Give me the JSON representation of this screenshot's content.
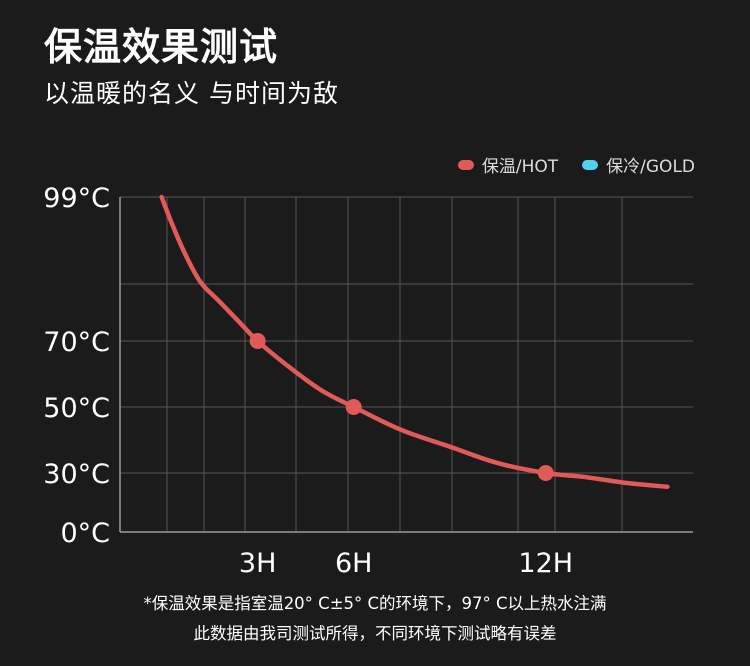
{
  "header": {
    "title": "保温效果测试",
    "subtitle": "以温暖的名义 与时间为敌"
  },
  "legend": [
    {
      "label": "保温/HOT",
      "color": "#e05a58"
    },
    {
      "label": "保冷/GOLD",
      "color": "#4fd2f0"
    }
  ],
  "colors": {
    "background": "#1b1b1b",
    "grid": "#555555",
    "axis": "#9a9a9a",
    "hot": "#e05a58"
  },
  "footnote": {
    "line1": "*保温效果是指室温20° C±5° C的环境下，97° C以上热水注满",
    "line2": "此数据由我司测试所得，不同环境下测试略有误差"
  },
  "chart_data": {
    "type": "line",
    "title": "保温效果测试",
    "xlabel": "",
    "ylabel": "",
    "grid": true,
    "legend_position": "top-right",
    "y_ticks": [
      {
        "value": 99,
        "label": "99°C"
      },
      {
        "value": 70,
        "label": "70°C"
      },
      {
        "value": 50,
        "label": "50°C"
      },
      {
        "value": 30,
        "label": "30°C"
      },
      {
        "value": 0,
        "label": "0°C"
      }
    ],
    "x_ticks": [
      {
        "value": 3,
        "label": "3H"
      },
      {
        "value": 6,
        "label": "6H"
      },
      {
        "value": 12,
        "label": "12H"
      }
    ],
    "series": [
      {
        "name": "保温/HOT",
        "color": "#e05a58",
        "curve": [
          {
            "x": 0,
            "y": 99
          },
          {
            "x": 0.3,
            "y": 94
          },
          {
            "x": 0.7,
            "y": 88
          },
          {
            "x": 1.2,
            "y": 82
          },
          {
            "x": 1.8,
            "y": 78
          },
          {
            "x": 2.4,
            "y": 74
          },
          {
            "x": 3,
            "y": 70
          },
          {
            "x": 4,
            "y": 62
          },
          {
            "x": 5,
            "y": 55
          },
          {
            "x": 6,
            "y": 50
          },
          {
            "x": 7.5,
            "y": 43
          },
          {
            "x": 9,
            "y": 38
          },
          {
            "x": 10.5,
            "y": 33
          },
          {
            "x": 12,
            "y": 30
          },
          {
            "x": 13.2,
            "y": 28
          },
          {
            "x": 14.5,
            "y": 25
          },
          {
            "x": 15.8,
            "y": 23
          }
        ],
        "markers": [
          {
            "x": 3,
            "y": 70
          },
          {
            "x": 6,
            "y": 50
          },
          {
            "x": 12,
            "y": 30
          }
        ]
      }
    ]
  }
}
